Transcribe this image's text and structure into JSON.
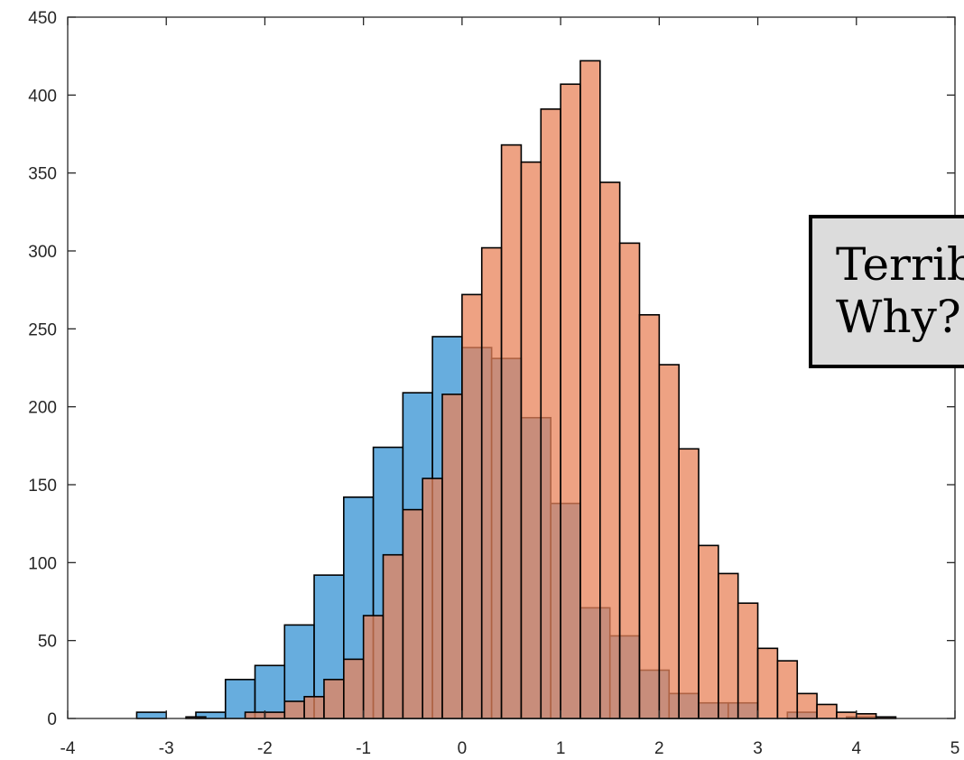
{
  "colors": {
    "series_1": "#4c9fd8",
    "series_2": "#e8835a",
    "overlap": "#a86a58",
    "edge": "#000000"
  },
  "callout": {
    "line1": "Terrible!",
    "line2": "Why?"
  },
  "chart_data": {
    "type": "bar",
    "subtype": "histogram",
    "bin_width": 0.2,
    "xlim": [
      -4,
      5
    ],
    "ylim": [
      0,
      450
    ],
    "x_ticks": [
      -4,
      -3,
      -2,
      -1,
      0,
      1,
      2,
      3,
      4,
      5
    ],
    "y_ticks": [
      0,
      50,
      100,
      150,
      200,
      250,
      300,
      350,
      400,
      450
    ],
    "title": "",
    "xlabel": "",
    "ylabel": "",
    "grid": false,
    "legend": "none",
    "series": [
      {
        "color": "#4c9fd8",
        "bins": [
          {
            "x0": -3.3,
            "x1": -3.0,
            "y": 4
          },
          {
            "x0": -2.7,
            "x1": -2.4,
            "y": 4
          },
          {
            "x0": -2.4,
            "x1": -2.1,
            "y": 25
          },
          {
            "x0": -2.1,
            "x1": -1.8,
            "y": 34
          },
          {
            "x0": -1.8,
            "x1": -1.5,
            "y": 60
          },
          {
            "x0": -1.5,
            "x1": -1.2,
            "y": 92
          },
          {
            "x0": -1.2,
            "x1": -0.9,
            "y": 142
          },
          {
            "x0": -0.9,
            "x1": -0.6,
            "y": 174
          },
          {
            "x0": -0.6,
            "x1": -0.3,
            "y": 209
          },
          {
            "x0": -0.3,
            "x1": 0.0,
            "y": 245
          },
          {
            "x0": 0.0,
            "x1": 0.3,
            "y": 238
          },
          {
            "x0": 0.3,
            "x1": 0.6,
            "y": 231
          },
          {
            "x0": 0.6,
            "x1": 0.9,
            "y": 193
          },
          {
            "x0": 0.9,
            "x1": 1.2,
            "y": 138
          },
          {
            "x0": 1.2,
            "x1": 1.5,
            "y": 71
          },
          {
            "x0": 1.5,
            "x1": 1.8,
            "y": 53
          },
          {
            "x0": 1.8,
            "x1": 2.1,
            "y": 31
          },
          {
            "x0": 2.1,
            "x1": 2.4,
            "y": 16
          },
          {
            "x0": 2.4,
            "x1": 2.7,
            "y": 10
          },
          {
            "x0": 2.7,
            "x1": 3.0,
            "y": 10
          },
          {
            "x0": 3.3,
            "x1": 3.6,
            "y": 4
          },
          {
            "x0": 3.9,
            "x1": 4.2,
            "y": 1
          }
        ]
      },
      {
        "color": "#e8835a",
        "bins": [
          {
            "x0": -2.8,
            "x1": -2.6,
            "y": 1
          },
          {
            "x0": -2.2,
            "x1": -2.0,
            "y": 4
          },
          {
            "x0": -2.0,
            "x1": -1.8,
            "y": 4
          },
          {
            "x0": -1.8,
            "x1": -1.6,
            "y": 11
          },
          {
            "x0": -1.6,
            "x1": -1.4,
            "y": 14
          },
          {
            "x0": -1.4,
            "x1": -1.2,
            "y": 25
          },
          {
            "x0": -1.2,
            "x1": -1.0,
            "y": 38
          },
          {
            "x0": -1.0,
            "x1": -0.8,
            "y": 66
          },
          {
            "x0": -0.8,
            "x1": -0.6,
            "y": 105
          },
          {
            "x0": -0.6,
            "x1": -0.4,
            "y": 134
          },
          {
            "x0": -0.4,
            "x1": -0.2,
            "y": 154
          },
          {
            "x0": -0.2,
            "x1": 0.0,
            "y": 208
          },
          {
            "x0": 0.0,
            "x1": 0.2,
            "y": 272
          },
          {
            "x0": 0.2,
            "x1": 0.4,
            "y": 302
          },
          {
            "x0": 0.4,
            "x1": 0.6,
            "y": 368
          },
          {
            "x0": 0.6,
            "x1": 0.8,
            "y": 357
          },
          {
            "x0": 0.8,
            "x1": 1.0,
            "y": 391
          },
          {
            "x0": 1.0,
            "x1": 1.2,
            "y": 407
          },
          {
            "x0": 1.2,
            "x1": 1.4,
            "y": 422
          },
          {
            "x0": 1.4,
            "x1": 1.6,
            "y": 344
          },
          {
            "x0": 1.6,
            "x1": 1.8,
            "y": 305
          },
          {
            "x0": 1.8,
            "x1": 2.0,
            "y": 259
          },
          {
            "x0": 2.0,
            "x1": 2.2,
            "y": 227
          },
          {
            "x0": 2.2,
            "x1": 2.4,
            "y": 173
          },
          {
            "x0": 2.4,
            "x1": 2.6,
            "y": 111
          },
          {
            "x0": 2.6,
            "x1": 2.8,
            "y": 93
          },
          {
            "x0": 2.8,
            "x1": 3.0,
            "y": 74
          },
          {
            "x0": 3.0,
            "x1": 3.2,
            "y": 45
          },
          {
            "x0": 3.2,
            "x1": 3.4,
            "y": 37
          },
          {
            "x0": 3.4,
            "x1": 3.6,
            "y": 16
          },
          {
            "x0": 3.6,
            "x1": 3.8,
            "y": 9
          },
          {
            "x0": 3.8,
            "x1": 4.0,
            "y": 4
          },
          {
            "x0": 4.0,
            "x1": 4.2,
            "y": 3
          },
          {
            "x0": 4.2,
            "x1": 4.4,
            "y": 1
          }
        ]
      }
    ]
  }
}
